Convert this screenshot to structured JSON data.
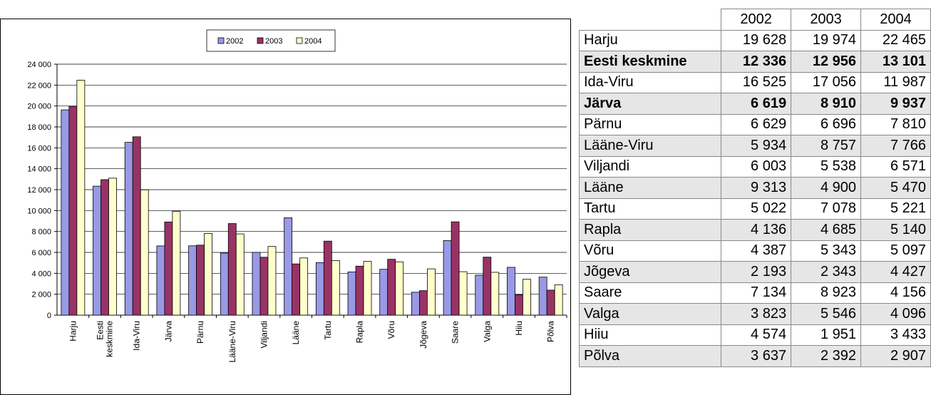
{
  "chart_data": {
    "type": "bar",
    "categories": [
      "Harju",
      "Eesti keskmine",
      "Ida-Viru",
      "Järva",
      "Pärnu",
      "Lääne-Viru",
      "Viljandi",
      "Lääne",
      "Tartu",
      "Rapla",
      "Võru",
      "Jõgeva",
      "Saare",
      "Valga",
      "Hiiu",
      "Põlva"
    ],
    "series": [
      {
        "name": "2002",
        "color": "#9999e6",
        "values": [
          19628,
          12336,
          16525,
          6619,
          6629,
          5934,
          6003,
          9313,
          5022,
          4136,
          4387,
          2193,
          7134,
          3823,
          4574,
          3637
        ],
        "value_labels": [
          "19 628",
          "12 336",
          "16 525",
          "6 619",
          "6 629",
          "5 934",
          "6 003",
          "9 313",
          "5 022",
          "4 136",
          "4 387",
          "2 193",
          "7 134",
          "3 823",
          "4 574",
          "3 637"
        ]
      },
      {
        "name": "2003",
        "color": "#993366",
        "values": [
          19974,
          12956,
          17056,
          8910,
          6696,
          8757,
          5538,
          4900,
          7078,
          4685,
          5343,
          2343,
          8923,
          5546,
          1951,
          2392
        ],
        "value_labels": [
          "19 974",
          "12 956",
          "17 056",
          "8 910",
          "6 696",
          "8 757",
          "5 538",
          "4 900",
          "7 078",
          "4 685",
          "5 343",
          "2 343",
          "8 923",
          "5 546",
          "1 951",
          "2 392"
        ]
      },
      {
        "name": "2004",
        "color": "#ffffcc",
        "values": [
          22465,
          13101,
          11987,
          9937,
          7810,
          7766,
          6571,
          5470,
          5221,
          5140,
          5097,
          4427,
          4156,
          4096,
          3433,
          2907
        ],
        "value_labels": [
          "22 465",
          "13 101",
          "11 987",
          "9 937",
          "7 810",
          "7 766",
          "6 571",
          "5 470",
          "5 221",
          "5 140",
          "5 097",
          "4 427",
          "4 156",
          "4 096",
          "3 433",
          "2 907"
        ]
      }
    ],
    "ylim": [
      0,
      24000
    ],
    "yticks": [
      0,
      {
        "value": 2000,
        "label": "2 000"
      },
      {
        "value": 4000,
        "label": "4 000"
      },
      {
        "value": 6000,
        "label": "6 000"
      },
      {
        "value": 8000,
        "label": "8 000"
      },
      {
        "value": 10000,
        "label": "10 000"
      },
      {
        "value": 12000,
        "label": "12 000"
      },
      {
        "value": 14000,
        "label": "14 000"
      },
      {
        "value": 16000,
        "label": "16 000"
      },
      {
        "value": 18000,
        "label": "18 000"
      },
      {
        "value": 20000,
        "label": "20 000"
      },
      {
        "value": 22000,
        "label": "22 000"
      },
      {
        "value": 24000,
        "label": "24 000"
      }
    ],
    "grid": true,
    "legend": "top",
    "bold_rows": [
      1,
      3
    ]
  }
}
